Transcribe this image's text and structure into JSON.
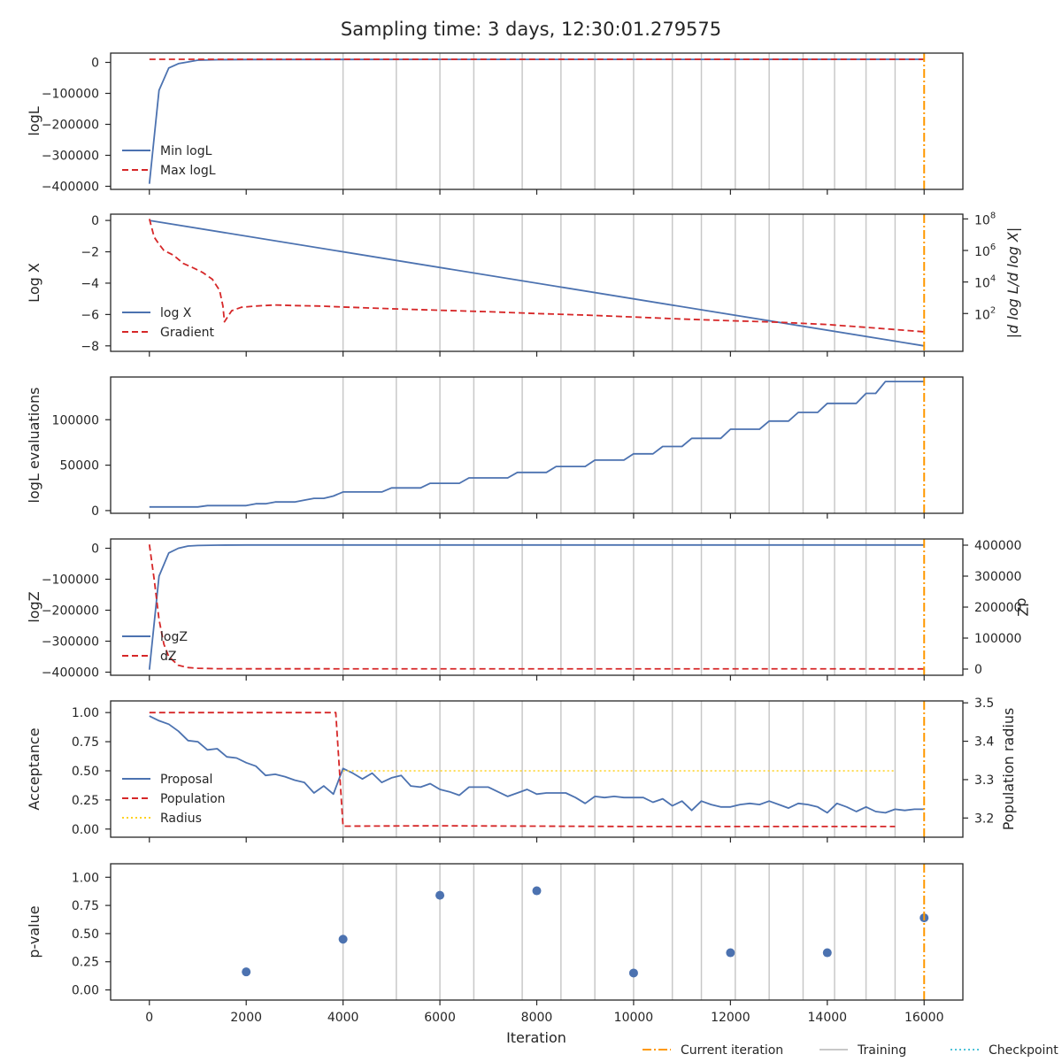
{
  "chart_data": {
    "title": "Sampling time: 3 days, 12:30:01.279575",
    "type": "line",
    "xlabel": "Iteration",
    "xlim": [
      -800,
      16800
    ],
    "xticks": [
      0,
      2000,
      4000,
      6000,
      8000,
      10000,
      12000,
      14000,
      16000
    ],
    "training_iterations": [
      4000,
      5100,
      6000,
      6700,
      7700,
      8500,
      9200,
      10000,
      10800,
      11400,
      12100,
      12800,
      13500,
      14150,
      14800,
      15400
    ],
    "current_iteration": 16000,
    "colors": {
      "blue": "#4c72b0",
      "red": "#d62728",
      "orange": "#ff9900",
      "yellow": "#ffd21f",
      "training": "#c8c8c8",
      "checkpoint": "#4fc3d9",
      "axis": "#262626"
    },
    "legend_bottom": [
      {
        "label": "Current iteration",
        "style": "dashdot",
        "color": "orange"
      },
      {
        "label": "Training",
        "style": "solid",
        "color": "training"
      },
      {
        "label": "Checkpoint",
        "style": "dotted",
        "color": "checkpoint"
      }
    ],
    "panels": [
      {
        "ylabel": "logL",
        "ylim": [
          -410000,
          30000
        ],
        "yticks": [
          [
            0,
            "0"
          ],
          [
            -100000,
            "−100000"
          ],
          [
            -200000,
            "−200000"
          ],
          [
            -300000,
            "−300000"
          ],
          [
            -400000,
            "−400000"
          ]
        ],
        "legend": [
          {
            "label": "Min logL",
            "style": "solid",
            "color": "blue"
          },
          {
            "label": "Max logL",
            "style": "dashed",
            "color": "red"
          }
        ],
        "series": [
          {
            "name": "Min logL",
            "style": "solid",
            "color": "blue",
            "x": [
              0,
              200,
              400,
              600,
              800,
              1000,
              1400,
              2000,
              4000,
              8000,
              12000,
              16000
            ],
            "y": [
              -392000,
              -90000,
              -18000,
              -4000,
              1500,
              7000,
              8500,
              9000,
              9300,
              9600,
              9800,
              9900
            ]
          },
          {
            "name": "Max logL",
            "style": "dashed",
            "color": "red",
            "x": [
              0,
              16000
            ],
            "y": [
              10000,
              10000
            ]
          }
        ]
      },
      {
        "ylabel": "Log X",
        "ylim": [
          -8.35,
          0.4
        ],
        "yticks": [
          [
            0,
            "0"
          ],
          [
            -2,
            "−2"
          ],
          [
            -4,
            "−4"
          ],
          [
            -6,
            "−6"
          ],
          [
            -8,
            "−8"
          ]
        ],
        "y2label": "|d log L/d log X|",
        "y2_log": true,
        "y2lim": [
          0.4,
          200000000
        ],
        "y2ticks": [
          [
            100,
            "10",
            "2"
          ],
          [
            10000,
            "10",
            "4"
          ],
          [
            1000000,
            "10",
            "6"
          ],
          [
            100000000,
            "10",
            "8"
          ]
        ],
        "legend": [
          {
            "label": "log X",
            "style": "solid",
            "color": "blue"
          },
          {
            "label": "Gradient",
            "style": "dashed",
            "color": "red"
          }
        ],
        "series": [
          {
            "name": "log X",
            "style": "solid",
            "color": "blue",
            "axis": "left",
            "x": [
              0,
              16000
            ],
            "y": [
              0,
              -8
            ]
          },
          {
            "name": "Gradient",
            "style": "dashed",
            "color": "red",
            "axis": "right",
            "x": [
              0,
              100,
              200,
              300,
              500,
              700,
              900,
              1100,
              1300,
              1450,
              1520,
              1550,
              1700,
              1900,
              2200,
              2600,
              3000,
              3500,
              4000,
              5000,
              6000,
              7000,
              8000,
              9000,
              10000,
              11000,
              12000,
              13000,
              14000,
              15000,
              16000
            ],
            "y": [
              100000000,
              7000000,
              2500000,
              1000000,
              500000,
              150000,
              80000,
              40000,
              15000,
              3000,
              300,
              30,
              150,
              250,
              300,
              350,
              320,
              300,
              260,
              200,
              160,
              130,
              100,
              80,
              60,
              45,
              35,
              28,
              20,
              12,
              7
            ]
          }
        ]
      },
      {
        "ylabel": "logL evaluations",
        "ylim": [
          -3000,
          147000
        ],
        "yticks": [
          [
            0,
            "0"
          ],
          [
            50000,
            "50000"
          ],
          [
            100000,
            "100000"
          ]
        ],
        "legend": [],
        "series": [
          {
            "name": "logL evaluations",
            "style": "solid",
            "color": "blue",
            "x": [
              0,
              1000,
              1200,
              2000,
              2200,
              2400,
              2600,
              3000,
              3200,
              3400,
              3600,
              3800,
              4000,
              4800,
              5000,
              5600,
              5800,
              6400,
              6600,
              7400,
              7600,
              8200,
              8400,
              9000,
              9200,
              9800,
              10000,
              10400,
              10600,
              11000,
              11200,
              11800,
              12000,
              12600,
              12800,
              13200,
              13400,
              13800,
              14000,
              14600,
              14800,
              15000,
              15200,
              16000
            ],
            "y": [
              4000,
              4000,
              5500,
              5500,
              7500,
              7500,
              9500,
              9500,
              11500,
              13500,
              13500,
              16000,
              20500,
              20500,
              25000,
              25000,
              30000,
              30000,
              36000,
              36000,
              42000,
              42000,
              48500,
              48500,
              55500,
              55500,
              62500,
              62500,
              70500,
              70500,
              79500,
              79500,
              89500,
              89500,
              98500,
              98500,
              108000,
              108000,
              118000,
              118000,
              129000,
              129000,
              142000,
              142000
            ]
          }
        ]
      },
      {
        "ylabel": "logZ",
        "ylim": [
          -410000,
          30000
        ],
        "yticks": [
          [
            0,
            "0"
          ],
          [
            -100000,
            "−100000"
          ],
          [
            -200000,
            "−200000"
          ],
          [
            -300000,
            "−300000"
          ],
          [
            -400000,
            "−400000"
          ]
        ],
        "y2label": "dZ",
        "y2lim": [
          -20000,
          420000
        ],
        "y2ticks": [
          [
            0,
            "0"
          ],
          [
            100000,
            "100000"
          ],
          [
            200000,
            "200000"
          ],
          [
            300000,
            "300000"
          ],
          [
            400000,
            "400000"
          ]
        ],
        "legend": [
          {
            "label": "logZ",
            "style": "solid",
            "color": "blue"
          },
          {
            "label": "dZ",
            "style": "dashed",
            "color": "red"
          }
        ],
        "series": [
          {
            "name": "logZ",
            "style": "solid",
            "color": "blue",
            "axis": "left",
            "x": [
              0,
              200,
              400,
              600,
              800,
              1000,
              1400,
              2000,
              16000
            ],
            "y": [
              -392000,
              -90000,
              -15000,
              0,
              7000,
              9000,
              10000,
              10500,
              10500
            ]
          },
          {
            "name": "dZ",
            "style": "dashed",
            "color": "red",
            "axis": "right",
            "x": [
              0,
              100,
              200,
              300,
              400,
              600,
              800,
              1000,
              1400,
              2000,
              16000
            ],
            "y": [
              402000,
              290000,
              160000,
              80000,
              40000,
              12000,
              5000,
              2500,
              1200,
              800,
              500
            ]
          }
        ]
      },
      {
        "ylabel": "Acceptance",
        "ylim": [
          -0.07,
          1.1
        ],
        "yticks": [
          [
            0,
            "0.00"
          ],
          [
            0.25,
            "0.25"
          ],
          [
            0.5,
            "0.50"
          ],
          [
            0.75,
            "0.75"
          ],
          [
            1.0,
            "1.00"
          ]
        ],
        "y2label": "Population radius",
        "y2lim": [
          3.15,
          3.505
        ],
        "y2ticks": [
          [
            3.2,
            "3.2"
          ],
          [
            3.3,
            "3.3"
          ],
          [
            3.4,
            "3.4"
          ],
          [
            3.5,
            "3.5"
          ]
        ],
        "legend": [
          {
            "label": "Proposal",
            "style": "solid",
            "color": "blue"
          },
          {
            "label": "Population",
            "style": "dashed",
            "color": "red"
          },
          {
            "label": "Radius",
            "style": "dotted",
            "color": "yellow"
          }
        ],
        "series": [
          {
            "name": "Proposal",
            "style": "solid",
            "color": "blue",
            "axis": "left",
            "x": [
              0,
              200,
              400,
              600,
              800,
              1000,
              1200,
              1400,
              1600,
              1800,
              2000,
              2200,
              2400,
              2600,
              2800,
              3000,
              3200,
              3400,
              3600,
              3800,
              4000,
              4200,
              4400,
              4600,
              4800,
              5000,
              5200,
              5400,
              5600,
              5800,
              6000,
              6200,
              6400,
              6600,
              6800,
              7000,
              7200,
              7400,
              7600,
              7800,
              8000,
              8200,
              8400,
              8600,
              8800,
              9000,
              9200,
              9400,
              9600,
              9800,
              10000,
              10200,
              10400,
              10600,
              10800,
              11000,
              11200,
              11400,
              11600,
              11800,
              12000,
              12200,
              12400,
              12600,
              12800,
              13000,
              13200,
              13400,
              13600,
              13800,
              14000,
              14200,
              14400,
              14600,
              14800,
              15000,
              15200,
              15400,
              15600,
              15800,
              16000
            ],
            "y": [
              0.97,
              0.93,
              0.9,
              0.84,
              0.76,
              0.75,
              0.68,
              0.69,
              0.62,
              0.61,
              0.57,
              0.54,
              0.46,
              0.47,
              0.45,
              0.42,
              0.4,
              0.31,
              0.37,
              0.3,
              0.52,
              0.48,
              0.43,
              0.48,
              0.4,
              0.44,
              0.46,
              0.37,
              0.36,
              0.39,
              0.34,
              0.32,
              0.29,
              0.36,
              0.36,
              0.36,
              0.32,
              0.28,
              0.31,
              0.34,
              0.3,
              0.31,
              0.31,
              0.31,
              0.27,
              0.22,
              0.28,
              0.27,
              0.28,
              0.27,
              0.27,
              0.27,
              0.23,
              0.26,
              0.2,
              0.24,
              0.16,
              0.24,
              0.21,
              0.19,
              0.19,
              0.21,
              0.22,
              0.21,
              0.24,
              0.21,
              0.18,
              0.22,
              0.21,
              0.19,
              0.14,
              0.22,
              0.19,
              0.15,
              0.19,
              0.15,
              0.14,
              0.17,
              0.16,
              0.17,
              0.17
            ]
          },
          {
            "name": "Population",
            "style": "dashed",
            "color": "red",
            "axis": "left",
            "x": [
              0,
              3850,
              4000,
              6000,
              10000,
              15400
            ],
            "y": [
              1.0,
              1.0,
              0.025,
              0.028,
              0.022,
              0.022
            ]
          },
          {
            "name": "Radius",
            "style": "dotted",
            "color": "yellow",
            "axis": "left",
            "x": [
              4000,
              15400
            ],
            "y": [
              0.5,
              0.5
            ]
          }
        ]
      },
      {
        "ylabel": "p-value",
        "ylim": [
          -0.09,
          1.12
        ],
        "yticks": [
          [
            0,
            "0.00"
          ],
          [
            0.25,
            "0.25"
          ],
          [
            0.5,
            "0.50"
          ],
          [
            0.75,
            "0.75"
          ],
          [
            1.0,
            "1.00"
          ]
        ],
        "legend": [],
        "series": [
          {
            "name": "p-value",
            "style": "scatter",
            "color": "blue",
            "x": [
              2000,
              4000,
              6000,
              8000,
              10000,
              12000,
              14000,
              16000
            ],
            "y": [
              0.16,
              0.45,
              0.84,
              0.88,
              0.15,
              0.33,
              0.33,
              0.64
            ]
          }
        ]
      }
    ]
  }
}
